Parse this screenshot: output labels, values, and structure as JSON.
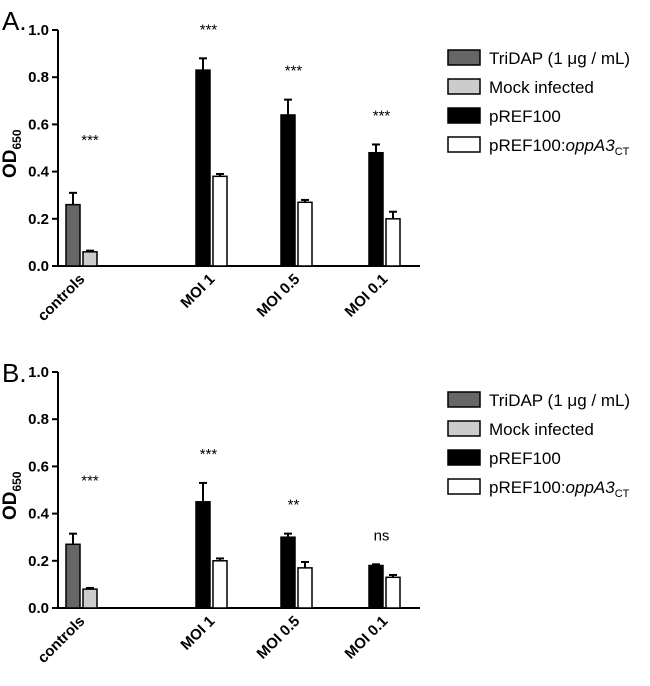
{
  "charts": [
    {
      "panel_label": "A.",
      "ylabel_main": "OD",
      "ylabel_sub": "650"
    },
    {
      "panel_label": "B.",
      "ylabel_main": "OD",
      "ylabel_sub": "650"
    }
  ],
  "legend": {
    "items": [
      {
        "label": "TriDAP (1 μg / mL)",
        "italic": "",
        "sub": "",
        "color": "#666666"
      },
      {
        "label": "Mock infected",
        "italic": "",
        "sub": "",
        "color": "#cccccc"
      },
      {
        "label": "pREF100",
        "italic": "",
        "sub": "",
        "color": "#000000"
      },
      {
        "label": "pREF100:",
        "italic": "oppA3",
        "sub": "CT",
        "color": "#ffffff"
      }
    ]
  },
  "chart_data": [
    {
      "type": "bar",
      "panel": "A.",
      "ylabel": "OD650",
      "ylim": [
        0,
        1.0
      ],
      "yticks": [
        "0.0",
        "0.2",
        "0.4",
        "0.6",
        "0.8",
        "1.0"
      ],
      "groups": [
        {
          "label": "controls",
          "sig": "***",
          "bars": [
            {
              "series": "TriDAP (1 μg / mL)",
              "value": 0.26,
              "error": 0.05
            },
            {
              "series": "Mock infected",
              "value": 0.06,
              "error": 0.005
            }
          ]
        },
        {
          "label": "MOI 1",
          "sig": "***",
          "bars": [
            {
              "series": "pREF100",
              "value": 0.83,
              "error": 0.05
            },
            {
              "series": "pREF100:oppA3CT",
              "value": 0.38,
              "error": 0.01
            }
          ]
        },
        {
          "label": "MOI 0.5",
          "sig": "***",
          "bars": [
            {
              "series": "pREF100",
              "value": 0.64,
              "error": 0.065
            },
            {
              "series": "pREF100:oppA3CT",
              "value": 0.27,
              "error": 0.01
            }
          ]
        },
        {
          "label": "MOI 0.1",
          "sig": "***",
          "bars": [
            {
              "series": "pREF100",
              "value": 0.48,
              "error": 0.035
            },
            {
              "series": "pREF100:oppA3CT",
              "value": 0.2,
              "error": 0.03
            }
          ]
        }
      ]
    },
    {
      "type": "bar",
      "panel": "B.",
      "ylabel": "OD650",
      "ylim": [
        0,
        1.0
      ],
      "yticks": [
        "0.0",
        "0.2",
        "0.4",
        "0.6",
        "0.8",
        "1.0"
      ],
      "groups": [
        {
          "label": "controls",
          "sig": "***",
          "bars": [
            {
              "series": "TriDAP (1 μg / mL)",
              "value": 0.27,
              "error": 0.045
            },
            {
              "series": "Mock infected",
              "value": 0.08,
              "error": 0.005
            }
          ]
        },
        {
          "label": "MOI 1",
          "sig": "***",
          "bars": [
            {
              "series": "pREF100",
              "value": 0.45,
              "error": 0.08
            },
            {
              "series": "pREF100:oppA3CT",
              "value": 0.2,
              "error": 0.01
            }
          ]
        },
        {
          "label": "MOI 0.5",
          "sig": "**",
          "bars": [
            {
              "series": "pREF100",
              "value": 0.3,
              "error": 0.015
            },
            {
              "series": "pREF100:oppA3CT",
              "value": 0.17,
              "error": 0.025
            }
          ]
        },
        {
          "label": "MOI 0.1",
          "sig": "ns",
          "bars": [
            {
              "series": "pREF100",
              "value": 0.18,
              "error": 0.005
            },
            {
              "series": "pREF100:oppA3CT",
              "value": 0.13,
              "error": 0.01
            }
          ]
        }
      ]
    }
  ]
}
